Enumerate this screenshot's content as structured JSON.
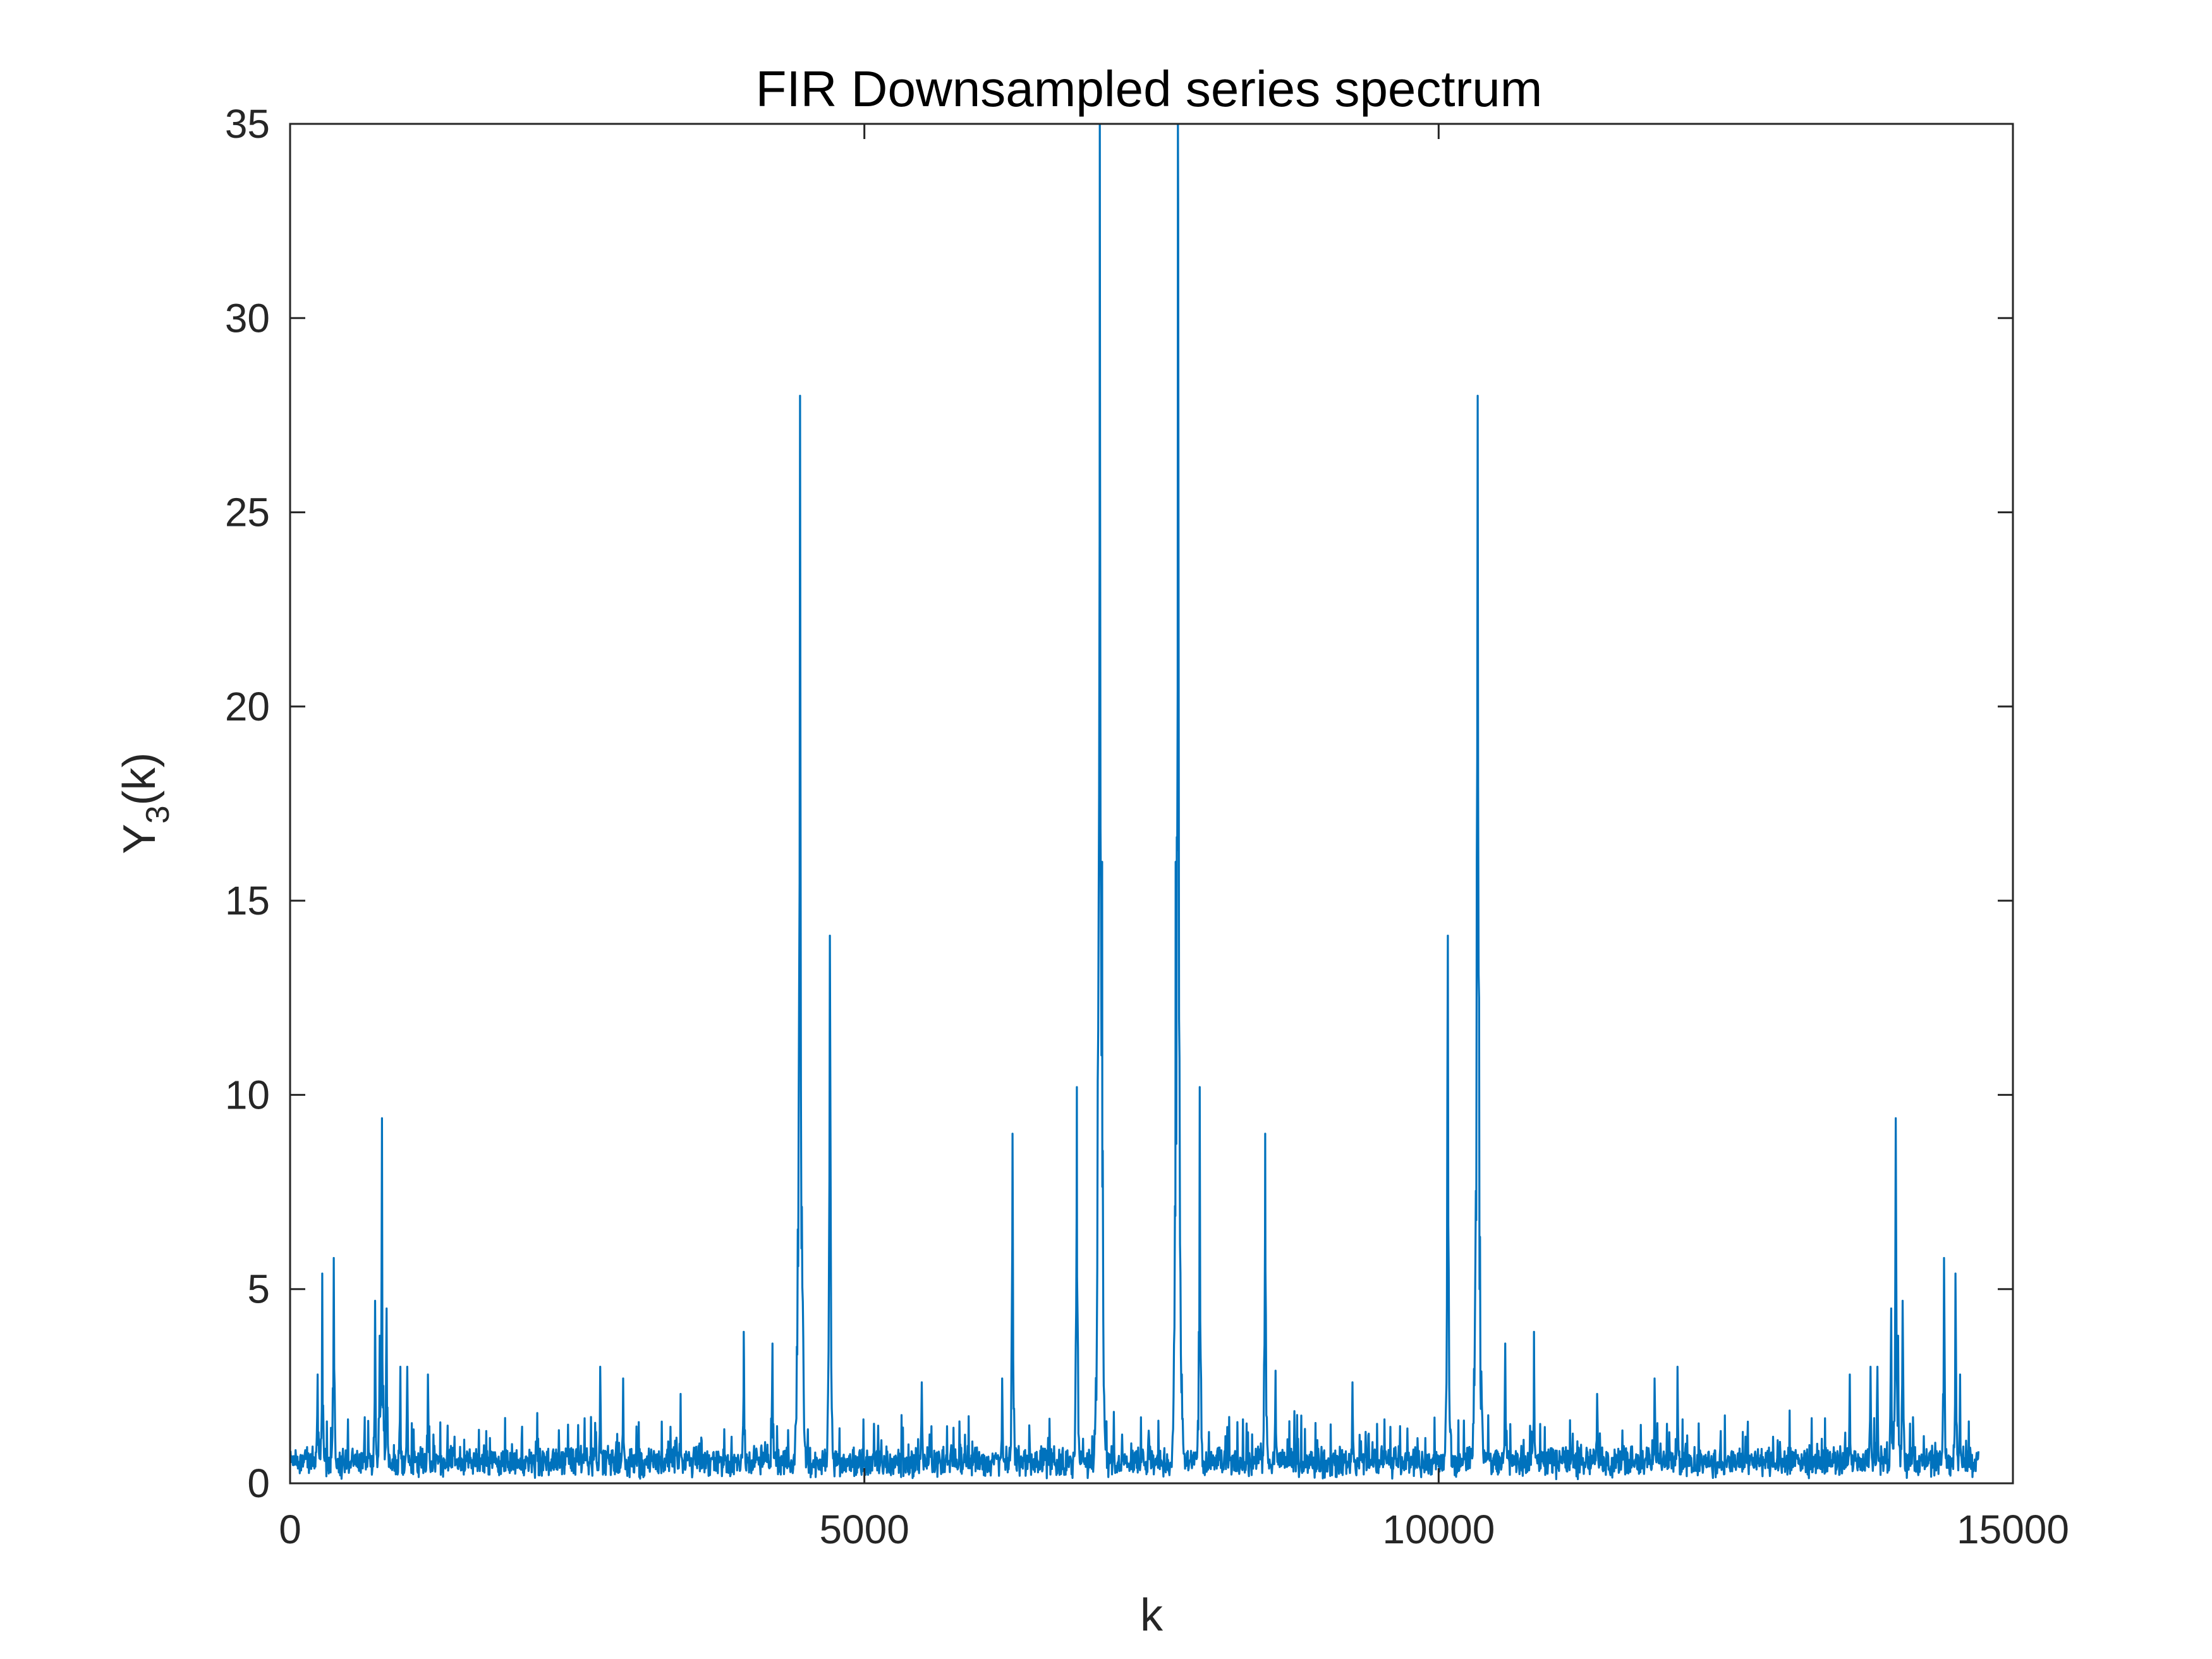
{
  "chart_data": {
    "type": "line",
    "title": "FIR Downsampled series spectrum",
    "xlabel": "k",
    "ylabel": {
      "main": "Y",
      "subscript": "3",
      "suffix": "(k)"
    },
    "xlim": [
      0,
      15000
    ],
    "ylim": [
      0,
      35
    ],
    "xticks": [
      0,
      5000,
      10000,
      15000
    ],
    "xtick_labels": [
      "0",
      "5000",
      "10000",
      "15000"
    ],
    "yticks": [
      0,
      5,
      10,
      15,
      20,
      25,
      30,
      35
    ],
    "ytick_labels": [
      "0",
      "5",
      "10",
      "15",
      "20",
      "25",
      "30",
      "35"
    ],
    "grid": false,
    "box": true,
    "line_color": "#0072BD",
    "axis_color": "#262626",
    "n_points": 14700,
    "baseline_level": 0.35,
    "noise_amplitude": 0.9,
    "peaks": [
      {
        "k": 240,
        "value": 2.8
      },
      {
        "k": 280,
        "value": 5.4
      },
      {
        "k": 380,
        "value": 5.8
      },
      {
        "k": 650,
        "value": 1.7
      },
      {
        "k": 740,
        "value": 4.7
      },
      {
        "k": 780,
        "value": 3.8
      },
      {
        "k": 800,
        "value": 9.4
      },
      {
        "k": 840,
        "value": 4.5
      },
      {
        "k": 960,
        "value": 3.0
      },
      {
        "k": 1020,
        "value": 3.0
      },
      {
        "k": 1200,
        "value": 2.8
      },
      {
        "k": 2700,
        "value": 3.0
      },
      {
        "k": 2900,
        "value": 2.7
      },
      {
        "k": 3400,
        "value": 2.3
      },
      {
        "k": 3950,
        "value": 3.9
      },
      {
        "k": 4200,
        "value": 3.6
      },
      {
        "k": 4440,
        "value": 28.0
      },
      {
        "k": 4700,
        "value": 14.1
      },
      {
        "k": 5500,
        "value": 2.6
      },
      {
        "k": 6200,
        "value": 2.7
      },
      {
        "k": 6290,
        "value": 9.0
      },
      {
        "k": 6850,
        "value": 10.2
      },
      {
        "k": 7050,
        "value": 35.0
      },
      {
        "k": 7070,
        "value": 16.0
      },
      {
        "k": 7710,
        "value": 16.0
      },
      {
        "k": 7730,
        "value": 35.0
      },
      {
        "k": 7920,
        "value": 10.2
      },
      {
        "k": 8490,
        "value": 9.0
      },
      {
        "k": 8580,
        "value": 2.9
      },
      {
        "k": 9250,
        "value": 2.6
      },
      {
        "k": 10080,
        "value": 14.1
      },
      {
        "k": 10340,
        "value": 28.0
      },
      {
        "k": 10580,
        "value": 3.6
      },
      {
        "k": 10830,
        "value": 3.9
      },
      {
        "k": 11380,
        "value": 2.3
      },
      {
        "k": 11880,
        "value": 2.7
      },
      {
        "k": 12080,
        "value": 3.0
      },
      {
        "k": 13580,
        "value": 2.8
      },
      {
        "k": 13760,
        "value": 3.0
      },
      {
        "k": 13820,
        "value": 3.0
      },
      {
        "k": 13940,
        "value": 4.5
      },
      {
        "k": 13980,
        "value": 9.4
      },
      {
        "k": 14000,
        "value": 3.8
      },
      {
        "k": 14040,
        "value": 4.7
      },
      {
        "k": 14130,
        "value": 1.7
      },
      {
        "k": 14400,
        "value": 5.8
      },
      {
        "k": 14500,
        "value": 5.4
      },
      {
        "k": 14540,
        "value": 2.8
      }
    ]
  }
}
